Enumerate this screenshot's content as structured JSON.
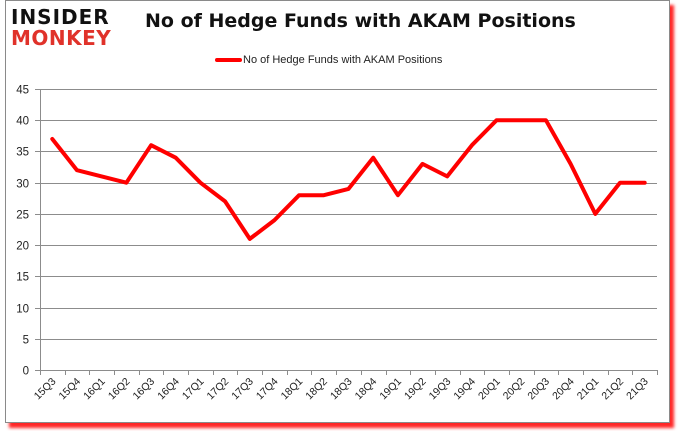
{
  "logo": {
    "line1": "INSIDER",
    "line2": "MONKEY"
  },
  "title": "No of Hedge Funds with AKAM Positions",
  "legend": {
    "label": "No of Hedge Funds with AKAM Positions",
    "color": "#ff0000"
  },
  "colors": {
    "series": "#ff0000",
    "grid": "#8c8c8c",
    "frame_shadow": "#ff0000"
  },
  "chart_data": {
    "type": "line",
    "title": "No of Hedge Funds with AKAM Positions",
    "xlabel": "",
    "ylabel": "",
    "ylim": [
      0,
      45
    ],
    "yticks": [
      0,
      5,
      10,
      15,
      20,
      25,
      30,
      35,
      40,
      45
    ],
    "grid": true,
    "legend_position": "top",
    "categories": [
      "15Q3",
      "15Q4",
      "16Q1",
      "16Q2",
      "16Q3",
      "16Q4",
      "17Q1",
      "17Q2",
      "17Q3",
      "17Q4",
      "18Q1",
      "18Q2",
      "18Q3",
      "18Q4",
      "19Q1",
      "19Q2",
      "19Q3",
      "19Q4",
      "20Q1",
      "20Q2",
      "20Q3",
      "20Q4",
      "21Q1",
      "21Q2",
      "21Q3"
    ],
    "series": [
      {
        "name": "No of Hedge Funds with AKAM Positions",
        "values": [
          37,
          32,
          31,
          30,
          36,
          34,
          30,
          27,
          21,
          24,
          28,
          28,
          29,
          34,
          28,
          33,
          31,
          36,
          40,
          40,
          40,
          33,
          25,
          30,
          30
        ]
      }
    ]
  }
}
